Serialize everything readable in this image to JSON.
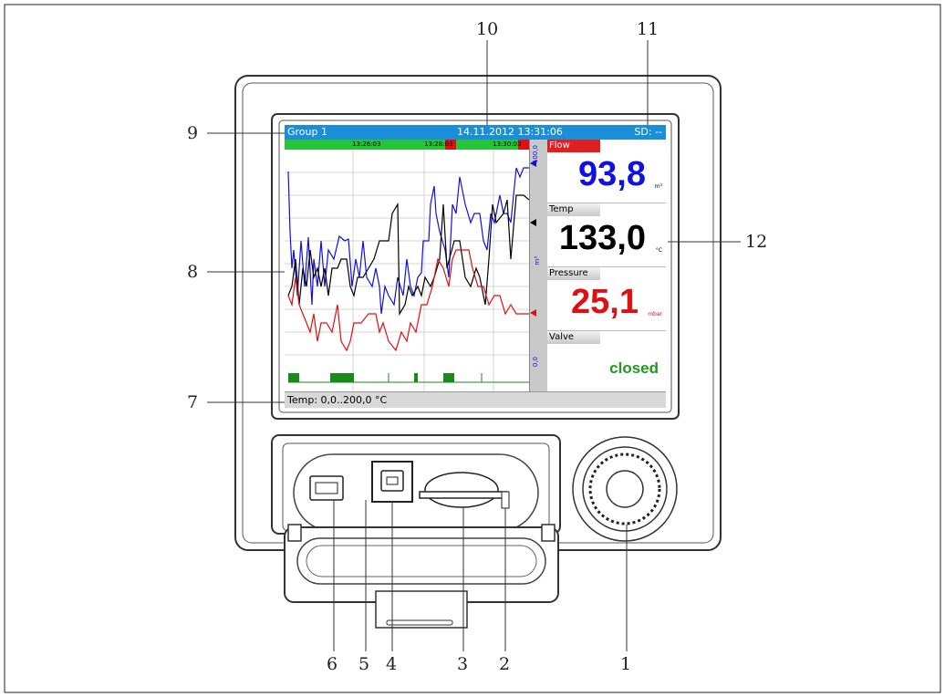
{
  "device": {
    "topbar": {
      "group": "Group 1",
      "datetime": "14.11.2012 13:31:06",
      "sd": "SD: --"
    },
    "timebar": {
      "t1": "13:26:03",
      "t2": "13:28:03",
      "t3": "13:30:03"
    },
    "scale": {
      "max": "100,0",
      "min": "0,0",
      "unit": "m³"
    },
    "status": "Temp: 0,0..200,0 °C",
    "channels": [
      {
        "name": "Flow",
        "value": "93,8",
        "unit": "m³",
        "color": "#1010e0",
        "name_bg": "#e02020"
      },
      {
        "name": "Temp",
        "value": "133,0",
        "unit": "°C",
        "color": "#000000"
      },
      {
        "name": "Pressure",
        "value": "25,1",
        "unit": "mbar",
        "color": "#e01010"
      },
      {
        "name": "Valve",
        "state": "closed",
        "color": "#1e9a1e"
      }
    ]
  },
  "callouts": [
    "1",
    "2",
    "3",
    "4",
    "5",
    "6",
    "7",
    "8",
    "9",
    "10",
    "11",
    "12"
  ]
}
